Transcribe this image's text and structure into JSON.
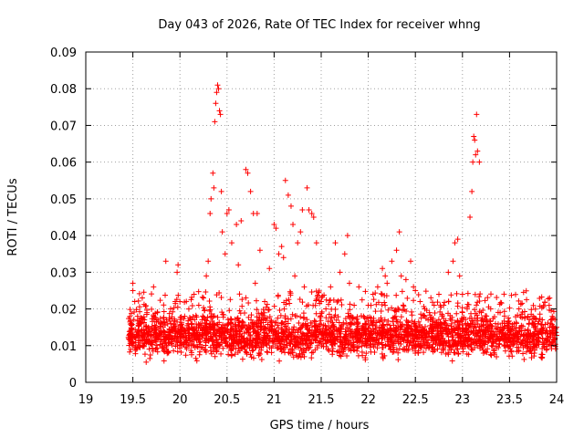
{
  "chart_data": {
    "type": "scatter",
    "title": "Day 043 of 2026, Rate Of TEC Index for receiver whng",
    "xlabel": "GPS time / hours",
    "ylabel": "ROTI / TECUs",
    "xlim": [
      19,
      24
    ],
    "ylim": [
      0,
      0.09
    ],
    "xticks": [
      "19",
      "19.5",
      "20",
      "20.5",
      "21",
      "21.5",
      "22",
      "22.5",
      "23",
      "23.5",
      "24"
    ],
    "yticks": [
      "0",
      "0.01",
      "0.02",
      "0.03",
      "0.04",
      "0.05",
      "0.06",
      "0.07",
      "0.08",
      "0.09"
    ],
    "grid": true,
    "marker": "plus",
    "color": "#ff0000",
    "series": [
      {
        "points": [
          [
            19.5,
            0.027
          ],
          [
            19.5,
            0.025
          ],
          [
            19.52,
            0.022
          ],
          [
            19.55,
            0.018
          ],
          [
            19.6,
            0.023
          ],
          [
            19.65,
            0.019
          ],
          [
            19.72,
            0.026
          ],
          [
            19.8,
            0.016
          ],
          [
            19.85,
            0.033
          ],
          [
            19.9,
            0.02
          ],
          [
            19.95,
            0.022
          ],
          [
            19.97,
            0.03
          ],
          [
            19.98,
            0.032
          ],
          [
            20.0,
            0.022
          ],
          [
            20.05,
            0.018
          ],
          [
            20.15,
            0.024
          ],
          [
            20.2,
            0.021
          ],
          [
            20.25,
            0.023
          ],
          [
            20.28,
            0.029
          ],
          [
            20.3,
            0.033
          ],
          [
            20.32,
            0.046
          ],
          [
            20.33,
            0.05
          ],
          [
            20.35,
            0.057
          ],
          [
            20.36,
            0.053
          ],
          [
            20.37,
            0.071
          ],
          [
            20.38,
            0.076
          ],
          [
            20.39,
            0.079
          ],
          [
            20.4,
            0.081
          ],
          [
            20.41,
            0.08
          ],
          [
            20.42,
            0.074
          ],
          [
            20.43,
            0.073
          ],
          [
            20.44,
            0.052
          ],
          [
            20.45,
            0.041
          ],
          [
            20.48,
            0.035
          ],
          [
            20.5,
            0.046
          ],
          [
            20.52,
            0.047
          ],
          [
            20.55,
            0.038
          ],
          [
            20.6,
            0.043
          ],
          [
            20.62,
            0.032
          ],
          [
            20.65,
            0.044
          ],
          [
            20.7,
            0.058
          ],
          [
            20.72,
            0.057
          ],
          [
            20.75,
            0.052
          ],
          [
            20.78,
            0.046
          ],
          [
            20.8,
            0.027
          ],
          [
            20.82,
            0.046
          ],
          [
            20.85,
            0.036
          ],
          [
            20.9,
            0.022
          ],
          [
            20.95,
            0.031
          ],
          [
            21.0,
            0.043
          ],
          [
            21.02,
            0.042
          ],
          [
            21.05,
            0.035
          ],
          [
            21.08,
            0.037
          ],
          [
            21.1,
            0.034
          ],
          [
            21.12,
            0.055
          ],
          [
            21.15,
            0.051
          ],
          [
            21.18,
            0.048
          ],
          [
            21.2,
            0.043
          ],
          [
            21.22,
            0.029
          ],
          [
            21.25,
            0.038
          ],
          [
            21.28,
            0.041
          ],
          [
            21.3,
            0.047
          ],
          [
            21.32,
            0.026
          ],
          [
            21.35,
            0.053
          ],
          [
            21.37,
            0.047
          ],
          [
            21.4,
            0.046
          ],
          [
            21.42,
            0.045
          ],
          [
            21.45,
            0.038
          ],
          [
            21.5,
            0.022
          ],
          [
            21.55,
            0.02
          ],
          [
            21.6,
            0.026
          ],
          [
            21.65,
            0.038
          ],
          [
            21.7,
            0.03
          ],
          [
            21.75,
            0.035
          ],
          [
            21.78,
            0.04
          ],
          [
            21.8,
            0.027
          ],
          [
            21.85,
            0.021
          ],
          [
            21.9,
            0.026
          ],
          [
            21.95,
            0.018
          ],
          [
            22.0,
            0.021
          ],
          [
            22.05,
            0.024
          ],
          [
            22.1,
            0.026
          ],
          [
            22.15,
            0.031
          ],
          [
            22.18,
            0.029
          ],
          [
            22.2,
            0.027
          ],
          [
            22.25,
            0.033
          ],
          [
            22.3,
            0.036
          ],
          [
            22.33,
            0.041
          ],
          [
            22.35,
            0.029
          ],
          [
            22.4,
            0.028
          ],
          [
            22.45,
            0.033
          ],
          [
            22.48,
            0.026
          ],
          [
            22.5,
            0.025
          ],
          [
            22.55,
            0.022
          ],
          [
            22.6,
            0.02
          ],
          [
            22.65,
            0.019
          ],
          [
            22.7,
            0.021
          ],
          [
            22.75,
            0.024
          ],
          [
            22.8,
            0.021
          ],
          [
            22.85,
            0.03
          ],
          [
            22.9,
            0.033
          ],
          [
            22.92,
            0.038
          ],
          [
            22.95,
            0.039
          ],
          [
            22.97,
            0.029
          ],
          [
            23.0,
            0.024
          ],
          [
            23.05,
            0.02
          ],
          [
            23.08,
            0.045
          ],
          [
            23.1,
            0.052
          ],
          [
            23.11,
            0.06
          ],
          [
            23.12,
            0.067
          ],
          [
            23.13,
            0.066
          ],
          [
            23.14,
            0.062
          ],
          [
            23.15,
            0.073
          ],
          [
            23.16,
            0.063
          ],
          [
            23.18,
            0.06
          ],
          [
            23.2,
            0.019
          ],
          [
            23.25,
            0.014
          ],
          [
            23.3,
            0.02
          ],
          [
            23.35,
            0.016
          ],
          [
            23.4,
            0.019
          ],
          [
            23.45,
            0.013
          ],
          [
            23.5,
            0.012
          ],
          [
            23.55,
            0.016
          ],
          [
            23.6,
            0.02
          ],
          [
            23.65,
            0.013
          ],
          [
            23.7,
            0.011
          ],
          [
            23.75,
            0.018
          ],
          [
            23.8,
            0.016
          ],
          [
            23.85,
            0.012
          ],
          [
            23.9,
            0.014
          ],
          [
            23.95,
            0.011
          ],
          [
            24.0,
            0.015
          ]
        ]
      }
    ],
    "baseline_band": {
      "x_range": [
        19.45,
        24.0
      ],
      "typical_y_range": [
        0.005,
        0.018
      ],
      "density": "dense"
    }
  }
}
